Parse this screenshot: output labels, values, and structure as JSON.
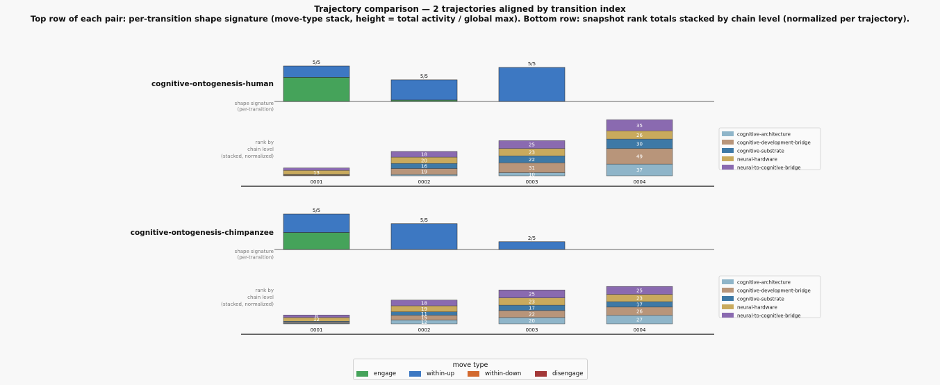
{
  "title_line1": "Trajectory comparison — 2 trajectories aligned by transition index",
  "title_line2": "Top row of each pair: per-transition shape signature (move-type stack, height = total activity / global max).  Bottom row: snapshot rank totals stacked by chain level (normalized per trajectory).",
  "colors": {
    "engage": "#45a35a",
    "within_up": "#3d78c2",
    "within_down": "#d2692e",
    "disengage": "#a33838",
    "cognitive-architecture": "#8fb5c9",
    "cognitive-development-bridge": "#b8957a",
    "cognitive-substrate": "#3e79a6",
    "neural-hardware": "#c9aa5d",
    "neural-to-cognitive-bridge": "#8a6ab0"
  },
  "labels": {
    "shape_signature": [
      "shape signature",
      "(per-transition)"
    ],
    "rank_by": [
      "rank by",
      "chain level",
      "(stacked, normalized)"
    ]
  },
  "move_legend": {
    "title": "move type",
    "items": [
      {
        "label": "engage",
        "color_key": "engage"
      },
      {
        "label": "within-up",
        "color_key": "within_up"
      },
      {
        "label": "within-down",
        "color_key": "within_down"
      },
      {
        "label": "disengage",
        "color_key": "disengage"
      }
    ]
  },
  "chain_levels": [
    "cognitive-architecture",
    "cognitive-development-bridge",
    "cognitive-substrate",
    "neural-hardware",
    "neural-to-cognitive-bridge"
  ],
  "chart_data": [
    {
      "type": "bar",
      "trajectory": "cognitive-ontogenesis-human",
      "shape_signature": {
        "categories": [
          "0001",
          "0002",
          "0003"
        ],
        "labels": [
          "5/5",
          "5/5",
          "5/5"
        ],
        "series": [
          {
            "name": "engage",
            "values": [
              0.68,
              0.04,
              0.0
            ]
          },
          {
            "name": "within-up",
            "values": [
              0.32,
              0.57,
              0.96
            ]
          },
          {
            "name": "within-down",
            "values": [
              0,
              0,
              0
            ]
          },
          {
            "name": "disengage",
            "values": [
              0,
              0,
              0
            ]
          }
        ]
      },
      "rank_by_chain_level": {
        "categories": [
          "0001",
          "0002",
          "0003",
          "0004"
        ],
        "series": [
          {
            "name": "cognitive-architecture",
            "values": [
              1,
              4,
              10,
              37
            ]
          },
          {
            "name": "cognitive-development-bridge",
            "values": [
              2,
              19,
              31,
              49
            ]
          },
          {
            "name": "cognitive-substrate",
            "values": [
              1,
              16,
              22,
              30
            ]
          },
          {
            "name": "neural-hardware",
            "values": [
              13,
              20,
              23,
              26
            ]
          },
          {
            "name": "neural-to-cognitive-bridge",
            "values": [
              8,
              18,
              25,
              35
            ]
          }
        ],
        "labeled": [
          [
            false,
            false,
            false,
            true,
            false
          ],
          [
            false,
            true,
            true,
            true,
            true
          ],
          [
            true,
            true,
            true,
            true,
            true
          ],
          [
            true,
            true,
            true,
            true,
            true
          ]
        ]
      }
    },
    {
      "type": "bar",
      "trajectory": "cognitive-ontogenesis-chimpanzee",
      "shape_signature": {
        "categories": [
          "0001",
          "0002",
          "0003"
        ],
        "labels": [
          "5/5",
          "5/5",
          "2/5"
        ],
        "series": [
          {
            "name": "engage",
            "values": [
              0.48,
              0.0,
              0.0
            ]
          },
          {
            "name": "within-up",
            "values": [
              0.52,
              0.73,
              0.22
            ]
          },
          {
            "name": "within-down",
            "values": [
              0,
              0,
              0
            ]
          },
          {
            "name": "disengage",
            "values": [
              0,
              0,
              0
            ]
          }
        ]
      },
      "rank_by_chain_level": {
        "categories": [
          "0001",
          "0002",
          "0003",
          "0004"
        ],
        "series": [
          {
            "name": "cognitive-architecture",
            "values": [
              2,
              12,
              20,
              27
            ]
          },
          {
            "name": "cognitive-development-bridge",
            "values": [
              3,
              15,
              22,
              26
            ]
          },
          {
            "name": "cognitive-substrate",
            "values": [
              3,
              11,
              17,
              17
            ]
          },
          {
            "name": "neural-hardware",
            "values": [
              12,
              19,
              23,
              23
            ]
          },
          {
            "name": "neural-to-cognitive-bridge",
            "values": [
              8,
              18,
              25,
              25
            ]
          }
        ],
        "labeled": [
          [
            false,
            false,
            false,
            true,
            true
          ],
          [
            true,
            true,
            true,
            true,
            true
          ],
          [
            true,
            true,
            true,
            true,
            true
          ],
          [
            true,
            true,
            true,
            true,
            true
          ]
        ]
      }
    }
  ]
}
